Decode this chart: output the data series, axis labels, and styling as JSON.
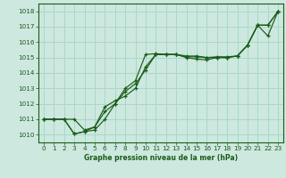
{
  "background_color": "#cde8de",
  "grid_color": "#a8d8cc",
  "line_color": "#1a5c1a",
  "title": "Graphe pression niveau de la mer (hPa)",
  "xlim": [
    -0.5,
    23.5
  ],
  "ylim": [
    1009.5,
    1018.5
  ],
  "yticks": [
    1010,
    1011,
    1012,
    1013,
    1014,
    1015,
    1016,
    1017,
    1018
  ],
  "xticks": [
    0,
    1,
    2,
    3,
    4,
    5,
    6,
    7,
    8,
    9,
    10,
    11,
    12,
    13,
    14,
    15,
    16,
    17,
    18,
    19,
    20,
    21,
    22,
    23
  ],
  "series1_x": [
    0,
    1,
    2,
    3,
    4,
    5,
    6,
    7,
    8,
    9,
    10,
    11,
    12,
    13,
    14,
    15,
    16,
    17,
    18,
    19,
    20,
    21,
    22,
    23
  ],
  "series1_y": [
    1011.0,
    1011.0,
    1011.0,
    1010.05,
    1010.2,
    1010.3,
    1011.0,
    1012.0,
    1013.0,
    1013.5,
    1015.2,
    1015.25,
    1015.2,
    1015.2,
    1015.05,
    1015.05,
    1015.0,
    1015.05,
    1015.05,
    1015.1,
    1015.8,
    1017.1,
    1016.4,
    1018.0
  ],
  "series2_x": [
    0,
    1,
    2,
    3,
    4,
    5,
    6,
    7,
    8,
    9,
    10,
    11,
    12,
    13,
    14,
    15,
    16,
    17,
    18,
    19,
    20,
    21,
    22,
    23
  ],
  "series2_y": [
    1011.0,
    1011.0,
    1011.0,
    1011.0,
    1010.3,
    1010.5,
    1011.8,
    1012.2,
    1012.5,
    1013.0,
    1014.4,
    1015.2,
    1015.2,
    1015.2,
    1015.1,
    1015.1,
    1015.0,
    1015.0,
    1015.0,
    1015.1,
    1015.8,
    1017.1,
    1017.1,
    1018.0
  ],
  "series3_x": [
    0,
    1,
    2,
    3,
    4,
    5,
    6,
    7,
    8,
    9,
    10,
    11,
    12,
    13,
    14,
    15,
    16,
    17,
    18,
    19,
    20,
    21,
    22,
    23
  ],
  "series3_y": [
    1011.0,
    1011.0,
    1011.0,
    1010.05,
    1010.2,
    1010.5,
    1011.5,
    1012.0,
    1012.8,
    1013.3,
    1014.2,
    1015.2,
    1015.2,
    1015.2,
    1015.0,
    1014.9,
    1014.85,
    1015.0,
    1015.0,
    1015.1,
    1015.8,
    1017.1,
    1017.1,
    1018.0
  ]
}
